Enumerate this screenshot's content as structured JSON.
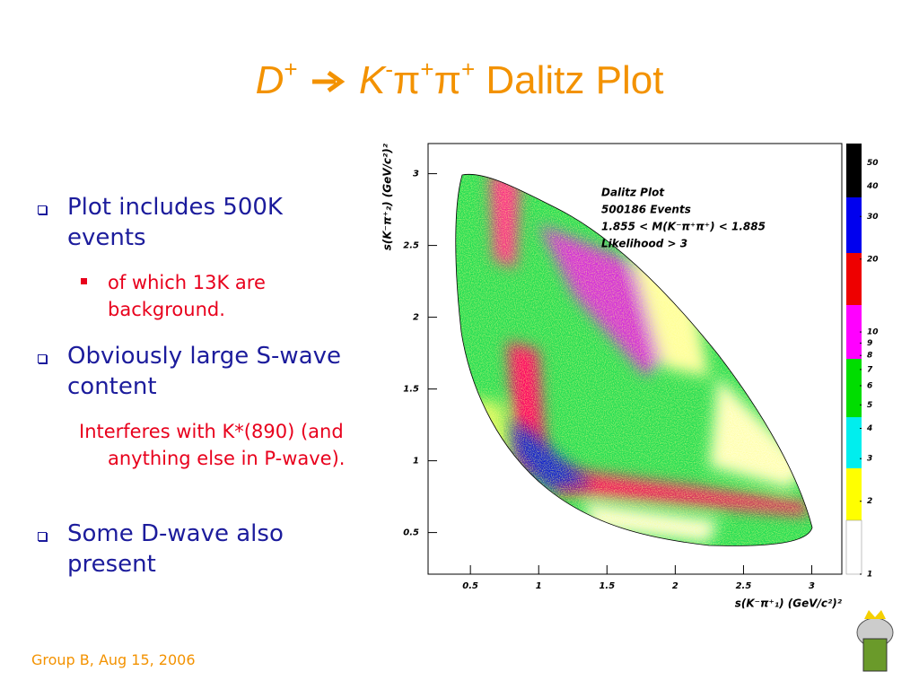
{
  "title": [
    "D",
    "+",
    "K",
    "-",
    "π",
    "+",
    "π",
    "+",
    "Dalitz Plot"
  ],
  "bullets": [
    {
      "text": "Plot includes 500K events",
      "sub": [
        "of which 13K are background."
      ]
    },
    {
      "text": "Obviously large S-wave content",
      "note": "Interferes with K*(890) (and anything else in P-wave)."
    },
    {
      "text": "Some D-wave also present"
    }
  ],
  "plot": {
    "xlim": [
      0.19,
      3.22
    ],
    "ylim": [
      0.21,
      3.21
    ],
    "xticks": [
      0.5,
      1,
      1.5,
      2,
      2.5,
      3
    ],
    "yticks": [
      0.5,
      1,
      1.5,
      2,
      2.5,
      3
    ],
    "x_label": "s(K⁻π⁺₁)  (GeV/c²)²",
    "y_label": "s(K⁻π⁺₂)  (GeV/c²)²",
    "legend": [
      "Dalitz Plot",
      "500186 Events",
      "1.855 < M(K⁻π⁺π⁺) < 1.885",
      "Likelihood > 3"
    ],
    "colorbar": {
      "lim": [
        1,
        60
      ],
      "log": true,
      "ticks": [
        1,
        2,
        3,
        4,
        5,
        6,
        7,
        8,
        9,
        10,
        20,
        30,
        40,
        50
      ]
    }
  },
  "footer": "Group B, Aug 15, 2006"
}
